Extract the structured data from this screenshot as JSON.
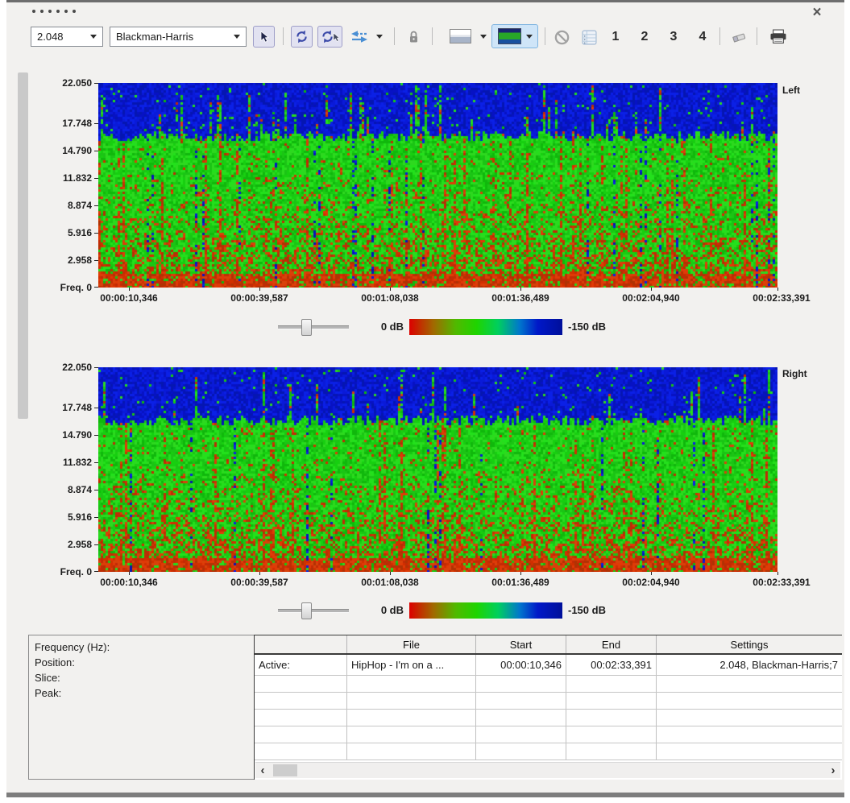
{
  "icons": {
    "close": "×",
    "scroll_left": "‹",
    "scroll_right": "›",
    "pointer_tool": "cursor-arrow",
    "refresh": "circular-arrows",
    "refresh_pointer": "circular-arrows-with-cursor",
    "swap_channels": "left-right-arrows",
    "lock": "padlock",
    "waveform_view": "waveform-thumbnail",
    "spectrum_view": "spectrogram-thumbnail",
    "disable": "circle-slash",
    "stats_grid": "grid-list",
    "eraser": "eraser",
    "print": "printer"
  },
  "toolbar": {
    "fft_size": "2.048",
    "window_fn": "Blackman-Harris",
    "presets": [
      "1",
      "2",
      "3",
      "4"
    ]
  },
  "spec": {
    "freq_ticks": [
      "22.050",
      "17.748",
      "14.790",
      "11.832",
      "8.874",
      "5.916",
      "2.958"
    ],
    "freq_zero": "Freq. 0",
    "time_ticks": [
      "00:00:10,346",
      "00:00:39,587",
      "00:01:08,038",
      "00:01:36,489",
      "00:02:04,940",
      "00:02:33,391"
    ],
    "ch_top": "Left",
    "ch_bottom": "Right",
    "db_min": "0 dB",
    "db_max": "-150 dB"
  },
  "info": {
    "labels": [
      "Frequency (Hz):",
      "Position:",
      "Slice:",
      "Peak:"
    ]
  },
  "table": {
    "headers": {
      "file": "File",
      "start": "Start",
      "end": "End",
      "settings": "Settings"
    },
    "active_row": {
      "label": "Active:",
      "file": "HipHop - I'm on a ...",
      "start": "00:00:10,346",
      "end": "00:02:33,391",
      "settings": "2.048, Blackman-Harris;7"
    }
  },
  "render": {
    "seeds": [
      20221,
      40223
    ],
    "blues": [
      "#0712c4",
      "#0a1ad8",
      "#0516b2",
      "#0b20e6"
    ],
    "greens": [
      "#17cf10",
      "#23e01c",
      "#10b80c",
      "#2ed81f",
      "#1bc415"
    ],
    "reds": [
      "#d03000",
      "#c22b05",
      "#e03a07",
      "#b03304",
      "#d8420a"
    ]
  }
}
